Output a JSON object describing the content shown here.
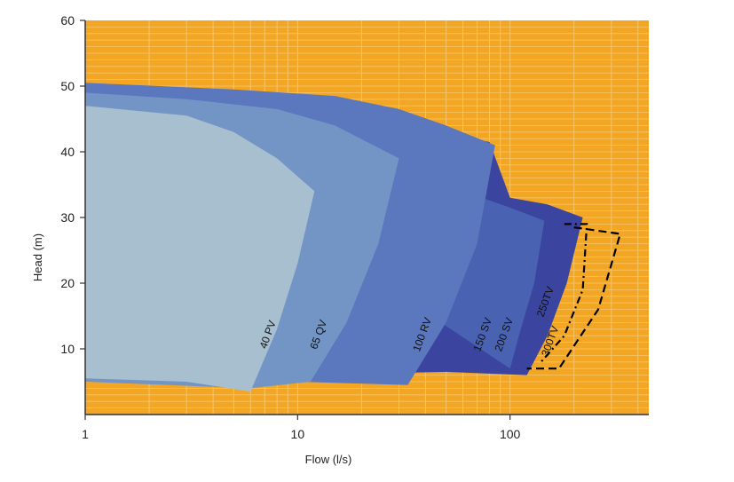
{
  "chart_data": {
    "type": "area",
    "title": "",
    "xlabel": "Flow (l/s)",
    "ylabel": "Head (m)",
    "xscale": "log",
    "xlim": [
      1,
      450
    ],
    "ylim": [
      0,
      60
    ],
    "x_ticks": [
      1,
      10,
      100
    ],
    "x_tick_labels": [
      "1",
      "10",
      "100"
    ],
    "y_ticks": [
      10,
      20,
      30,
      40,
      50,
      60
    ],
    "y_tick_labels": [
      "10",
      "20",
      "30",
      "40",
      "50",
      "60"
    ],
    "grid": true,
    "background_color": "#F2A624",
    "grid_color": "#F6C56A",
    "series": [
      {
        "name": "200 SV",
        "style": "filled",
        "color": "#3B45A0",
        "label_at": [
          97,
          12
        ],
        "points": [
          [
            1,
            50
          ],
          [
            10,
            46.5
          ],
          [
            40,
            43
          ],
          [
            80,
            41.5
          ],
          [
            100,
            33
          ],
          [
            150,
            32
          ],
          [
            220,
            30
          ],
          [
            185,
            20
          ],
          [
            150,
            12
          ],
          [
            120,
            6
          ],
          [
            50,
            6.5
          ],
          [
            10,
            6
          ],
          [
            1,
            5.5
          ]
        ]
      },
      {
        "name": "150 SV",
        "style": "filled",
        "color": "#4A62B2",
        "label_at": [
          77,
          12
        ],
        "points": [
          [
            1,
            50
          ],
          [
            60,
            34
          ],
          [
            100,
            31.5
          ],
          [
            145,
            29.5
          ],
          [
            130,
            20
          ],
          [
            110,
            12
          ],
          [
            100,
            7
          ]
        ]
      },
      {
        "name": "100 RV",
        "style": "filled",
        "color": "#5B77BD",
        "label_at": [
          40,
          12
        ],
        "points": [
          [
            1,
            50.5
          ],
          [
            5,
            49.5
          ],
          [
            15,
            48.5
          ],
          [
            30,
            46.5
          ],
          [
            50,
            44
          ],
          [
            85,
            41
          ],
          [
            70,
            26
          ],
          [
            50,
            14
          ],
          [
            33,
            4.5
          ],
          [
            10,
            5
          ],
          [
            1,
            5.5
          ]
        ]
      },
      {
        "name": "65 QV",
        "style": "filled",
        "color": "#7395C6",
        "label_at": [
          13,
          12
        ],
        "points": [
          [
            1,
            49
          ],
          [
            3,
            48
          ],
          [
            8,
            46.5
          ],
          [
            15,
            44
          ],
          [
            30,
            39
          ],
          [
            24,
            26
          ],
          [
            17,
            14
          ],
          [
            11.5,
            5
          ],
          [
            6,
            4
          ],
          [
            1,
            5
          ]
        ]
      },
      {
        "name": "40 PV",
        "style": "filled",
        "color": "#A8BFCF",
        "label_at": [
          7.5,
          12
        ],
        "points": [
          [
            1,
            47
          ],
          [
            3,
            45.5
          ],
          [
            5,
            43
          ],
          [
            8,
            39
          ],
          [
            12,
            34
          ],
          [
            10,
            23
          ],
          [
            8,
            13
          ],
          [
            6,
            3.5
          ],
          [
            3,
            5
          ],
          [
            1,
            5.5
          ]
        ]
      },
      {
        "name": "250TV",
        "style": "dash-dot",
        "color": "#000000",
        "label_at": [
          152,
          17
        ],
        "points": [
          [
            180,
            29
          ],
          [
            230,
            29
          ],
          [
            220,
            19
          ],
          [
            180,
            12
          ],
          [
            140,
            8
          ]
        ]
      },
      {
        "name": "300TV",
        "style": "dashed",
        "color": "#000000",
        "label_at": [
          160,
          11
        ],
        "points": [
          [
            200,
            28.5
          ],
          [
            330,
            27.5
          ],
          [
            260,
            16
          ],
          [
            170,
            7
          ],
          [
            120,
            7
          ]
        ]
      }
    ]
  }
}
